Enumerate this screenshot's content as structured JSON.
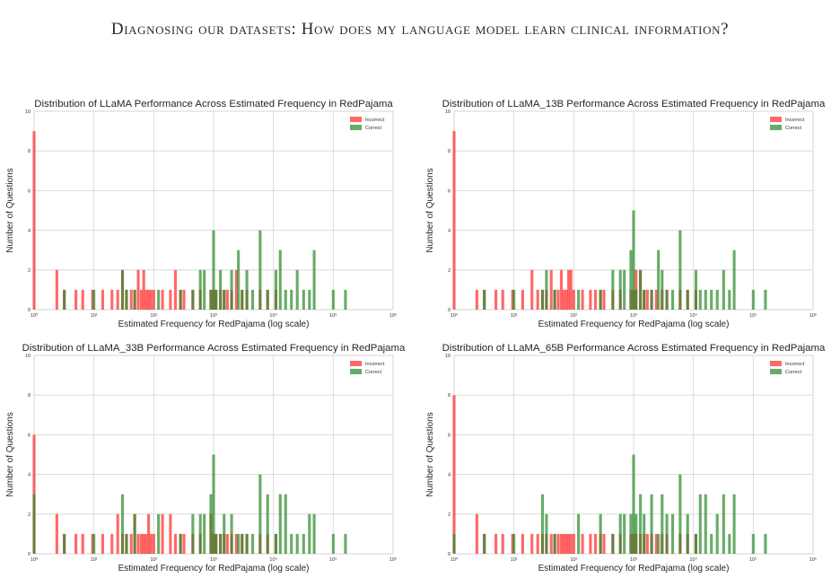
{
  "page_title": "Diagnosing our datasets: How does my language model learn clinical information?",
  "colors": {
    "incorrect": "#ff2e2e",
    "correct": "#2e8b2e"
  },
  "chart_data": [
    {
      "type": "bar",
      "title": "Distribution of LLaMA Performance Across Estimated Frequency in RedPajama",
      "xlabel": "Estimated Frequency for RedPajama (log scale)",
      "ylabel": "Number of Questions",
      "xscale": "log",
      "xlim": [
        1,
        1000000
      ],
      "ylim": [
        0,
        10
      ],
      "xticks": [
        "10⁰",
        "10¹",
        "10²",
        "10³",
        "10⁴",
        "10⁵",
        "10⁶"
      ],
      "yticks": [
        "0",
        "2",
        "4",
        "6",
        "8",
        "10"
      ],
      "grid": true,
      "legend_position": "top-right",
      "series": [
        {
          "name": "Incorrect",
          "color": "#ff2e2e",
          "x": [
            1,
            2.4,
            3.2,
            5,
            6.5,
            9.5,
            14,
            20,
            25,
            30,
            35,
            42,
            48,
            55,
            62,
            68,
            75,
            82,
            90,
            100,
            140,
            190,
            230,
            280,
            320,
            450,
            600,
            900,
            1000,
            1100,
            1300,
            1500,
            1700,
            2000,
            2400,
            3000,
            3600,
            6000,
            8000,
            11000
          ],
          "values": [
            9,
            2,
            1,
            1,
            1,
            1,
            1,
            1,
            1,
            2,
            1,
            1,
            1,
            2,
            1,
            2,
            1,
            1,
            1,
            1,
            1,
            1,
            2,
            1,
            1,
            1,
            1,
            1,
            1,
            1,
            1,
            1,
            1,
            1,
            2,
            1,
            1,
            1,
            1,
            1
          ]
        },
        {
          "name": "Correct",
          "color": "#2e8b2e",
          "x": [
            3.2,
            10,
            30,
            35,
            48,
            120,
            280,
            450,
            600,
            700,
            900,
            1000,
            1100,
            1300,
            1500,
            2000,
            2600,
            3000,
            3600,
            4500,
            6000,
            8000,
            11000,
            13000,
            16000,
            20000,
            25000,
            32000,
            40000,
            48000,
            100000,
            160000
          ],
          "values": [
            1,
            1,
            2,
            1,
            1,
            1,
            1,
            1,
            2,
            2,
            1,
            4,
            1,
            2,
            1,
            2,
            3,
            1,
            2,
            1,
            4,
            1,
            2,
            3,
            1,
            1,
            2,
            1,
            1,
            3,
            1,
            1
          ]
        }
      ]
    },
    {
      "type": "bar",
      "title": "Distribution of LLaMA_13B Performance Across Estimated Frequency in RedPajama",
      "xlabel": "Estimated Frequency for RedPajama (log scale)",
      "ylabel": "Number of Questions",
      "xscale": "log",
      "xlim": [
        1,
        1000000
      ],
      "ylim": [
        0,
        10
      ],
      "xticks": [
        "10⁰",
        "10¹",
        "10²",
        "10³",
        "10⁴",
        "10⁵",
        "10⁶"
      ],
      "yticks": [
        "0",
        "2",
        "4",
        "6",
        "8",
        "10"
      ],
      "grid": true,
      "legend_position": "top-right",
      "series": [
        {
          "name": "Incorrect",
          "color": "#ff2e2e",
          "x": [
            1,
            2.4,
            3.2,
            5,
            6.5,
            9.5,
            14,
            20,
            25,
            30,
            35,
            42,
            48,
            55,
            62,
            68,
            75,
            82,
            90,
            100,
            140,
            190,
            230,
            280,
            320,
            450,
            600,
            900,
            1000,
            1100,
            1300,
            1500,
            1700,
            2000,
            2400,
            3000,
            3600,
            6000,
            8000,
            11000
          ],
          "values": [
            9,
            1,
            1,
            1,
            1,
            1,
            1,
            2,
            1,
            1,
            1,
            2,
            1,
            1,
            2,
            1,
            1,
            2,
            2,
            1,
            1,
            1,
            1,
            1,
            1,
            1,
            1,
            1,
            1,
            2,
            2,
            1,
            1,
            1,
            1,
            1,
            1,
            1,
            1,
            1
          ]
        },
        {
          "name": "Correct",
          "color": "#2e8b2e",
          "x": [
            3.2,
            10,
            30,
            35,
            48,
            120,
            280,
            450,
            600,
            700,
            900,
            1000,
            1100,
            1300,
            1500,
            2000,
            2600,
            3000,
            3600,
            4500,
            6000,
            8000,
            11000,
            13000,
            16000,
            20000,
            25000,
            32000,
            40000,
            48000,
            100000,
            160000
          ],
          "values": [
            1,
            1,
            1,
            2,
            1,
            1,
            1,
            2,
            2,
            2,
            3,
            5,
            1,
            2,
            1,
            1,
            3,
            2,
            1,
            1,
            4,
            1,
            2,
            1,
            1,
            1,
            1,
            2,
            1,
            3,
            1,
            1
          ]
        }
      ]
    },
    {
      "type": "bar",
      "title": "Distribution of LLaMA_33B Performance Across Estimated Frequency in RedPajama",
      "xlabel": "Estimated Frequency for RedPajama (log scale)",
      "ylabel": "Number of Questions",
      "xscale": "log",
      "xlim": [
        1,
        1000000
      ],
      "ylim": [
        0,
        10
      ],
      "xticks": [
        "10⁰",
        "10¹",
        "10²",
        "10³",
        "10⁴",
        "10⁵",
        "10⁶"
      ],
      "yticks": [
        "0",
        "2",
        "4",
        "6",
        "8",
        "10"
      ],
      "grid": true,
      "legend_position": "top-right",
      "series": [
        {
          "name": "Incorrect",
          "color": "#ff2e2e",
          "x": [
            1,
            2.4,
            3.2,
            5,
            6.5,
            9.5,
            14,
            20,
            25,
            30,
            35,
            42,
            48,
            55,
            62,
            68,
            75,
            82,
            90,
            100,
            140,
            190,
            230,
            280,
            320,
            450,
            600,
            900,
            1000,
            1100,
            1300,
            1500,
            1700,
            2000,
            2400,
            3000,
            3600,
            6000,
            8000,
            11000
          ],
          "values": [
            6,
            2,
            1,
            1,
            1,
            1,
            1,
            1,
            2,
            1,
            1,
            1,
            2,
            1,
            1,
            1,
            1,
            2,
            1,
            1,
            2,
            2,
            1,
            1,
            1,
            1,
            1,
            2,
            1,
            1,
            1,
            1,
            1,
            1,
            1,
            1,
            1,
            1,
            1,
            1
          ]
        },
        {
          "name": "Correct",
          "color": "#2e8b2e",
          "x": [
            1,
            3.2,
            10,
            30,
            35,
            48,
            120,
            280,
            450,
            600,
            700,
            900,
            1000,
            1100,
            1300,
            1500,
            2000,
            2600,
            3000,
            3600,
            4500,
            6000,
            8000,
            11000,
            13000,
            16000,
            20000,
            25000,
            32000,
            40000,
            48000,
            100000,
            160000
          ],
          "values": [
            3,
            1,
            1,
            3,
            1,
            2,
            2,
            1,
            2,
            2,
            2,
            3,
            5,
            1,
            1,
            2,
            2,
            1,
            1,
            1,
            1,
            4,
            3,
            1,
            3,
            3,
            1,
            1,
            1,
            2,
            2,
            1,
            1
          ]
        }
      ]
    },
    {
      "type": "bar",
      "title": "Distribution of LLaMA_65B Performance Across Estimated Frequency in RedPajama",
      "xlabel": "Estimated Frequency for RedPajama (log scale)",
      "ylabel": "Number of Questions",
      "xscale": "log",
      "xlim": [
        1,
        1000000
      ],
      "ylim": [
        0,
        10
      ],
      "xticks": [
        "10⁰",
        "10¹",
        "10²",
        "10³",
        "10⁴",
        "10⁵",
        "10⁶"
      ],
      "yticks": [
        "0",
        "2",
        "4",
        "6",
        "8",
        "10"
      ],
      "grid": true,
      "legend_position": "top-right",
      "series": [
        {
          "name": "Incorrect",
          "color": "#ff2e2e",
          "x": [
            1,
            2.4,
            3.2,
            5,
            6.5,
            9.5,
            14,
            20,
            25,
            30,
            35,
            42,
            48,
            55,
            62,
            68,
            75,
            82,
            90,
            100,
            140,
            190,
            230,
            280,
            320,
            450,
            600,
            900,
            1000,
            1100,
            1300,
            1500,
            1700,
            2000,
            2400,
            3000,
            3600,
            6000,
            8000,
            11000
          ],
          "values": [
            8,
            2,
            1,
            1,
            1,
            1,
            1,
            1,
            1,
            1,
            1,
            1,
            1,
            1,
            1,
            1,
            1,
            1,
            1,
            1,
            1,
            1,
            1,
            1,
            1,
            1,
            1,
            1,
            1,
            1,
            1,
            1,
            1,
            1,
            1,
            1,
            1,
            1,
            1,
            1
          ]
        },
        {
          "name": "Correct",
          "color": "#2e8b2e",
          "x": [
            1,
            3.2,
            10,
            30,
            35,
            48,
            120,
            280,
            450,
            600,
            700,
            900,
            1000,
            1100,
            1300,
            1500,
            2000,
            2600,
            3000,
            3600,
            4500,
            6000,
            8000,
            11000,
            13000,
            16000,
            20000,
            25000,
            32000,
            40000,
            48000,
            100000,
            160000
          ],
          "values": [
            1,
            1,
            1,
            3,
            2,
            1,
            2,
            2,
            1,
            2,
            2,
            2,
            5,
            2,
            3,
            2,
            3,
            1,
            3,
            2,
            2,
            4,
            2,
            1,
            3,
            3,
            1,
            2,
            3,
            1,
            3,
            1,
            1
          ]
        }
      ]
    }
  ]
}
